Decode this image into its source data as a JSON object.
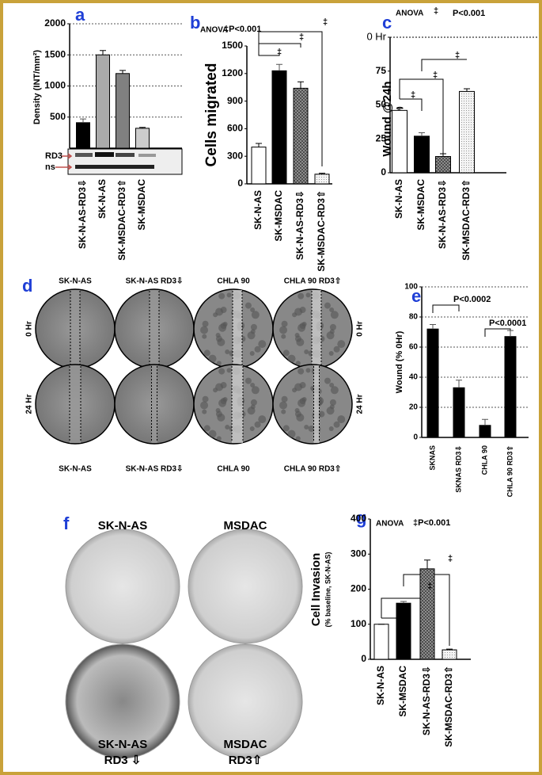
{
  "chart_data": [
    {
      "type": "bar",
      "panel": "a",
      "ylabel": "Density (INT/mm²)",
      "categories": [
        "SK-N-AS-RD3⇩",
        "SK-N-AS",
        "SK-MSDAC-RD3⇧",
        "SK-MSDAC"
      ],
      "values": [
        410,
        1500,
        1200,
        320
      ],
      "errors": [
        60,
        70,
        50,
        15
      ],
      "colors": [
        "#000000",
        "#aaaaaa",
        "#808080",
        "#cccccc"
      ],
      "ylim": [
        0,
        2000
      ],
      "yticks": [
        500,
        1000,
        1500,
        2000
      ],
      "grid": true,
      "blot_labels": [
        "RD3",
        "ns"
      ]
    },
    {
      "type": "bar",
      "panel": "b",
      "ylabel": "Cells migrated",
      "categories": [
        "SK-N-AS",
        "SK-MSDAC",
        "SK-N-AS-RD3⇩",
        "SK-MSDAC-RD3⇧"
      ],
      "values": [
        400,
        1230,
        1040,
        105
      ],
      "errors": [
        40,
        70,
        70,
        10
      ],
      "colors": [
        "#ffffff",
        "#000000",
        "#777777",
        "#e0e0e0"
      ],
      "ylim": [
        0,
        1500
      ],
      "yticks": [
        0,
        300,
        600,
        900,
        1200,
        1500
      ],
      "grid": false,
      "annotations": [
        "ANOVA",
        "‡P<0.001",
        "‡",
        "‡",
        "‡"
      ]
    },
    {
      "type": "bar",
      "panel": "c",
      "ylabel": "Wound @24h",
      "ylabel_sub": "(% 0Hr)",
      "categories": [
        "SK-N-AS",
        "SK-MSDAC",
        "SK-N-AS-RD3⇩",
        "SK-MSDAC-RD3⇧"
      ],
      "values": [
        46,
        27,
        12,
        60
      ],
      "errors": [
        1.5,
        2.5,
        2,
        2
      ],
      "colors": [
        "#ffffff",
        "#000000",
        "#777777",
        "#e8e8e8"
      ],
      "ylim": [
        0,
        100
      ],
      "yticks": [
        0,
        25,
        50,
        75,
        {
          "value": 100,
          "label": "0 Hr"
        }
      ],
      "grid": false,
      "annotations": [
        "ANOVA",
        "‡",
        "P<0.001",
        "‡",
        "‡",
        "‡"
      ]
    },
    {
      "type": "bar",
      "panel": "e",
      "ylabel": "Wound (% 0Hr)",
      "categories": [
        "SKNAS",
        "SKNAS RD3⇩",
        "CHLA 90",
        "CHLA 90 RD3⇧"
      ],
      "values": [
        72,
        33,
        8,
        67
      ],
      "errors": [
        3,
        5,
        4,
        4
      ],
      "colors": [
        "#000000",
        "#000000",
        "#000000",
        "#000000"
      ],
      "ylim": [
        0,
        100
      ],
      "yticks": [
        0,
        20,
        40,
        60,
        80,
        100
      ],
      "grid": true,
      "annotations": [
        "P<0.0002",
        "P<0.0001"
      ]
    },
    {
      "type": "bar",
      "panel": "g",
      "ylabel": "Cell Invasion",
      "ylabel_sub": "(% baseline, SK-N-AS)",
      "categories": [
        "SK-N-AS",
        "SK-MSDAC",
        "SK-N-AS-RD3⇩",
        "SK-MSDAC-RD3⇧"
      ],
      "values": [
        100,
        160,
        258,
        27
      ],
      "errors": [
        0,
        5,
        25,
        2
      ],
      "colors": [
        "#ffffff",
        "#000000",
        "#777777",
        "#e8e8e8"
      ],
      "ylim": [
        0,
        400
      ],
      "yticks": [
        0,
        100,
        200,
        300,
        400
      ],
      "grid": false,
      "annotations": [
        "ANOVA",
        "‡P<0.001",
        "‡",
        "‡",
        "‡"
      ]
    }
  ],
  "panel_d": {
    "panel": "d",
    "top_labels": [
      "SK-N-AS",
      "SK-N-AS RD3⇩",
      "CHLA 90",
      "CHLA 90 RD3⇧"
    ],
    "bottom_labels": [
      "SK-N-AS",
      "SK-N-AS RD3⇩",
      "CHLA 90",
      "CHLA 90 RD3⇧"
    ],
    "row_labels": [
      "0 Hr",
      "24 Hr"
    ]
  },
  "panel_f": {
    "panel": "f",
    "labels": [
      "SK-N-AS",
      "MSDAC",
      "SK-N-AS",
      "RD3 ⇩",
      "MSDAC",
      "RD3⇧"
    ]
  }
}
